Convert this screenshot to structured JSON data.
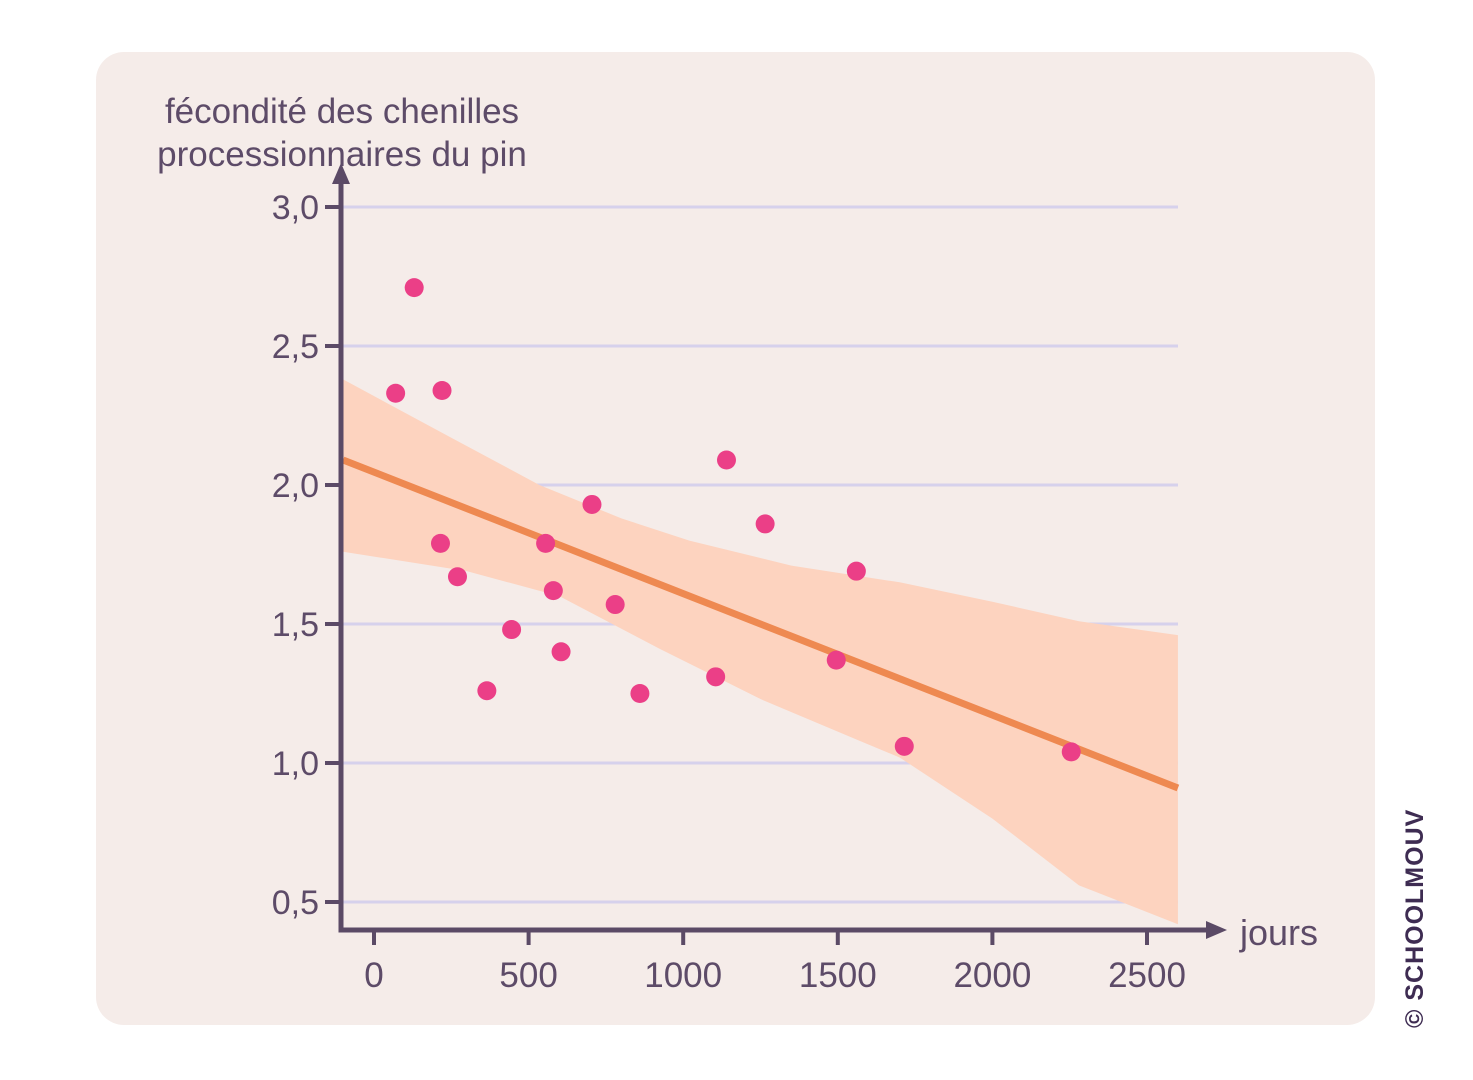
{
  "watermark": {
    "text": "© SCHOOLMOUV"
  },
  "chart_data": {
    "type": "scatter",
    "title_line1": "fécondité des chenilles",
    "title_line2": "processionnaires du pin",
    "y_axis_label": "fécondité des chenilles processionnaires du pin",
    "x_axis_label": "jours",
    "legend": "none",
    "grid": "horizontal",
    "xlim": [
      -110,
      2740
    ],
    "ylim": [
      0.3,
      3.2
    ],
    "x_ticks": [
      {
        "value": 0,
        "label": "0"
      },
      {
        "value": 500,
        "label": "500"
      },
      {
        "value": 1000,
        "label": "1000"
      },
      {
        "value": 1500,
        "label": "1500"
      },
      {
        "value": 2000,
        "label": "2000"
      },
      {
        "value": 2500,
        "label": "2500"
      }
    ],
    "y_ticks": [
      {
        "value": 3.0,
        "label": "3,0"
      },
      {
        "value": 2.5,
        "label": "2,5"
      },
      {
        "value": 2.0,
        "label": "2,0"
      },
      {
        "value": 1.5,
        "label": "1,5"
      },
      {
        "value": 1.0,
        "label": "1,0"
      },
      {
        "value": 0.5,
        "label": "0,5"
      }
    ],
    "points": [
      {
        "x": 70,
        "y": 2.33
      },
      {
        "x": 130,
        "y": 2.71
      },
      {
        "x": 215,
        "y": 1.79
      },
      {
        "x": 220,
        "y": 2.34
      },
      {
        "x": 270,
        "y": 1.67
      },
      {
        "x": 365,
        "y": 1.26
      },
      {
        "x": 445,
        "y": 1.48
      },
      {
        "x": 555,
        "y": 1.79
      },
      {
        "x": 580,
        "y": 1.62
      },
      {
        "x": 605,
        "y": 1.4
      },
      {
        "x": 705,
        "y": 1.93
      },
      {
        "x": 780,
        "y": 1.57
      },
      {
        "x": 860,
        "y": 1.25
      },
      {
        "x": 1105,
        "y": 1.31
      },
      {
        "x": 1140,
        "y": 2.09
      },
      {
        "x": 1265,
        "y": 1.86
      },
      {
        "x": 1495,
        "y": 1.37
      },
      {
        "x": 1560,
        "y": 1.69
      },
      {
        "x": 1715,
        "y": 1.06
      },
      {
        "x": 2255,
        "y": 1.04
      }
    ],
    "regression_line": {
      "x1": -100,
      "y1": 2.09,
      "x2": 2600,
      "y2": 0.91
    },
    "confidence_band_top": [
      [
        -100,
        2.38
      ],
      [
        250,
        2.17
      ],
      [
        535,
        2.0
      ],
      [
        800,
        1.88
      ],
      [
        1020,
        1.8
      ],
      [
        1350,
        1.71
      ],
      [
        1700,
        1.65
      ],
      [
        2000,
        1.58
      ],
      [
        2280,
        1.51
      ],
      [
        2600,
        1.46
      ]
    ],
    "confidence_band_bottom": [
      [
        -100,
        1.76
      ],
      [
        300,
        1.69
      ],
      [
        600,
        1.6
      ],
      [
        925,
        1.41
      ],
      [
        1250,
        1.23
      ],
      [
        1570,
        1.08
      ],
      [
        1700,
        1.02
      ],
      [
        2000,
        0.8
      ],
      [
        2280,
        0.56
      ],
      [
        2600,
        0.42
      ]
    ],
    "colors": {
      "points": "#eb3f87",
      "line": "#ee8951",
      "band": "#fdd3bf",
      "axis": "#5b4a66",
      "grid": "#d6d1ec",
      "text": "#5d4b68"
    }
  }
}
